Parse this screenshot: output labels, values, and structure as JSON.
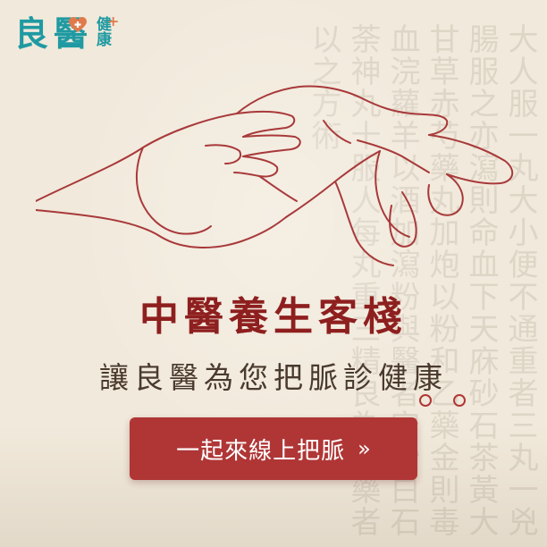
{
  "brand": {
    "logo_char1": "良",
    "logo_char2": "醫",
    "logo_char3": "健康",
    "logo_plus": "+",
    "logo_icon": "heart-plus-icon"
  },
  "background": {
    "calligraphy": "大人服一丸大小便不通重者三丸一兇腸服之亦瀉則命血下天庥砂石茶黃大甘草赤芍藥丸加炮以粉和乙藥金則毒血浣蘿羊以酒加瀉粉與醫者安砂白石荼神丸十服人每丸重三精良為散藥者以之方術"
  },
  "headline": {
    "title": "中醫養生客棧",
    "subtitle": "讓良醫為您把脈診健康"
  },
  "cta": {
    "label": "一起來線上把脈",
    "arrow": "»",
    "arrow_icon": "double-chevron-right-icon"
  },
  "colors": {
    "background": "#f1e9db",
    "brand_teal": "#1f9aa2",
    "accent_orange": "#e07a4b",
    "title_red": "#8e1f1f",
    "button_red": "#b03636",
    "line_red": "#a8393a",
    "subtitle_brown": "#4a3a2e"
  }
}
